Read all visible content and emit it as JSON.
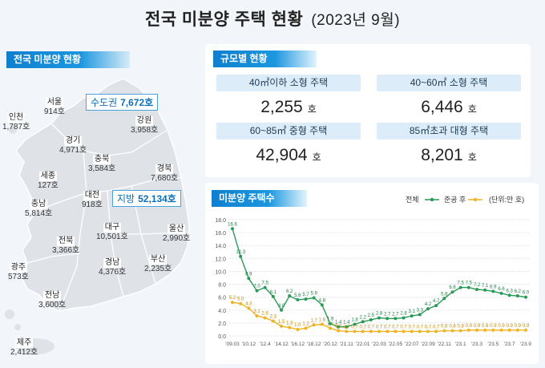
{
  "title": "전국 미분양 주택 현황",
  "title_date": "(2023년 9월)",
  "map_panel": {
    "header": "전국 미분양 현황",
    "regions": [
      {
        "name": "서울",
        "value": "914호"
      },
      {
        "name": "인천",
        "value": "1,787호"
      },
      {
        "name": "경기",
        "value": "4,971호"
      },
      {
        "name": "강원",
        "value": "3,958호"
      },
      {
        "name": "충북",
        "value": "3,584호"
      },
      {
        "name": "세종",
        "value": "127호"
      },
      {
        "name": "경북",
        "value": "7,680호"
      },
      {
        "name": "충남",
        "value": "5,814호"
      },
      {
        "name": "대전",
        "value": "918호"
      },
      {
        "name": "대구",
        "value": "10,501호"
      },
      {
        "name": "울산",
        "value": "2,990호"
      },
      {
        "name": "전북",
        "value": "3,366호"
      },
      {
        "name": "경남",
        "value": "4,376호"
      },
      {
        "name": "부산",
        "value": "2,235호"
      },
      {
        "name": "광주",
        "value": "573호"
      },
      {
        "name": "전남",
        "value": "3,600호"
      },
      {
        "name": "제주",
        "value": "2,412호"
      }
    ],
    "capital_label": "수도권",
    "capital_value": "7,672호",
    "local_label": "지방",
    "local_value": "52,134호",
    "colors": {
      "land": "#dfe3e8",
      "header": "#1488d6",
      "accent": "#0b6fb6"
    }
  },
  "size_panel": {
    "header": "규모별 현황",
    "cells": [
      {
        "label": "40㎡이하 소형 주택",
        "value": "2,255",
        "unit": "호"
      },
      {
        "label": "40~60㎡ 소형 주택",
        "value": "6,446",
        "unit": "호"
      },
      {
        "label": "60~85㎡ 중형 주택",
        "value": "42,904",
        "unit": "호"
      },
      {
        "label": "85㎡초과 대형 주택",
        "value": "8,201",
        "unit": "호"
      }
    ]
  },
  "chart_panel": {
    "header": "미분양 주택수",
    "legend_all": "전체",
    "legend_after": "준공 후",
    "unit_note": "(단위:만 호)"
  },
  "chart_data": {
    "type": "line",
    "title": "미분양 주택수",
    "ylim": [
      0,
      18
    ],
    "y_ticks": [
      "0.0",
      "2.0",
      "4.0",
      "6.0",
      "8.0",
      "10.0",
      "12.0",
      "14.0",
      "16.0",
      "18.0"
    ],
    "x_tick_labels": [
      "'09.03",
      "'10.12",
      "'12.4",
      "'14.12",
      "'16.12",
      "'18.12",
      "'20.12",
      "'21.11",
      "'22.01",
      "'22.03",
      "'22.05",
      "'22.07",
      "'22.09",
      "'22.11",
      "'23.1",
      "'23.3",
      "'23.5",
      "'23.7",
      "'23.9"
    ],
    "legend_position": "top-right",
    "grid": true,
    "series": [
      {
        "name": "전체",
        "color": "#2a9a57",
        "values": [
          16.6,
          12.3,
          8.9,
          7.0,
          7.5,
          6.1,
          4.0,
          6.2,
          5.6,
          5.7,
          5.9,
          4.8,
          1.9,
          1.4,
          1.4,
          1.8,
          2.2,
          2.5,
          2.8,
          2.7,
          2.7,
          2.8,
          3.1,
          3.3,
          4.2,
          4.7,
          5.8,
          6.8,
          7.5,
          7.5,
          7.2,
          7.1,
          6.9,
          6.6,
          6.3,
          6.2,
          6.0
        ],
        "labels": [
          "16.6",
          "12.3",
          "8.9",
          "7.0",
          "7.5",
          "6.1",
          "4.0",
          "6.2",
          "5.6",
          "5.7",
          "5.9",
          "4.8",
          "1.9",
          "1.4",
          "1.4",
          "1.8",
          "2.2",
          "2.5",
          "2.8",
          "2.7",
          "2.7",
          "2.8",
          "3.1",
          "3.3",
          "4.2",
          "4.7",
          "5.8",
          "6.8",
          "7.5",
          "7.5",
          "7.2",
          "7.1",
          "6.9",
          "6.6",
          "6.3",
          "6.2",
          "6.0"
        ]
      },
      {
        "name": "준공 후",
        "color": "#f0b323",
        "values": [
          5.2,
          5.0,
          4.3,
          3.1,
          2.8,
          2.3,
          1.5,
          1.3,
          1.0,
          1.2,
          1.7,
          1.8,
          1.2,
          0.8,
          0.7,
          0.7,
          0.7,
          0.7,
          0.7,
          0.7,
          0.7,
          0.7,
          0.7,
          0.7,
          0.7,
          0.7,
          0.8,
          0.8,
          0.8,
          0.9,
          0.9,
          0.9,
          0.9,
          0.9,
          0.9,
          0.9,
          0.9
        ],
        "labels": [
          "5.2",
          "5.0",
          "4.3",
          "3.1",
          "2.8",
          "2.3",
          "1.5",
          "1.3",
          "1.0",
          "1.2",
          "1.7",
          "1.8",
          "1.2",
          "0.8",
          "0.7",
          "0.7",
          "0.7",
          "0.7",
          "0.7",
          "0.7",
          "0.7",
          "0.7",
          "0.7",
          "0.7",
          "0.7",
          "0.7",
          "0.8",
          "0.8",
          "0.8",
          "0.9",
          "0.9",
          "0.9",
          "0.9",
          "0.9",
          "0.9",
          "0.9",
          "0.9"
        ]
      }
    ]
  }
}
